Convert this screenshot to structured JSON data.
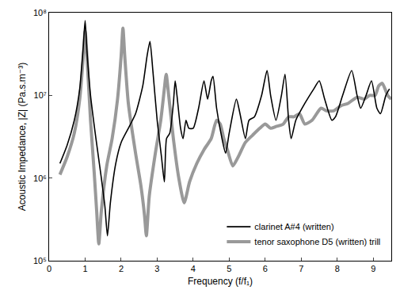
{
  "chart_data": {
    "type": "line",
    "x_label": "Frequency (f/f₁)",
    "y_label": "Acoustic Impedance, |Z| (Pa.s.m⁻³)",
    "log": "y",
    "grid": false,
    "legend": "lower right",
    "xlim": [
      0,
      9.5
    ],
    "xticks": [
      0,
      1,
      2,
      3,
      4,
      5,
      6,
      7,
      8,
      9
    ],
    "ylim": [
      100000,
      100000000
    ],
    "yticks": [
      {
        "value": 100000,
        "label": "10⁵"
      },
      {
        "value": 1000000,
        "label": "10⁶"
      },
      {
        "value": 10000000,
        "label": "10⁷"
      },
      {
        "value": 100000000,
        "label": "10⁸"
      }
    ],
    "series": [
      {
        "name": "clarinet A#4 (written)",
        "color": "#000000",
        "line_style": "solid",
        "x": [
          0.3,
          0.5,
          0.7,
          0.85,
          0.95,
          1.0,
          1.05,
          1.15,
          1.3,
          1.45,
          1.55,
          1.62,
          1.7,
          1.85,
          2.0,
          2.2,
          2.4,
          2.6,
          2.72,
          2.8,
          2.88,
          3.0,
          3.12,
          3.2,
          3.26,
          3.35,
          3.45,
          3.5,
          3.55,
          3.65,
          3.72,
          3.8,
          3.88,
          4.0,
          4.15,
          4.3,
          4.4,
          4.5,
          4.55,
          4.65,
          4.8,
          4.9,
          5.0,
          5.2,
          5.3,
          5.45,
          5.55,
          5.7,
          5.9,
          6.05,
          6.15,
          6.3,
          6.45,
          6.55,
          6.65,
          6.72,
          6.85,
          7.1,
          7.35,
          7.5,
          7.65,
          7.85,
          7.95,
          8.15,
          8.4,
          8.55,
          8.65,
          8.8,
          8.95,
          9.1,
          9.2,
          9.35,
          9.45
        ],
        "values": [
          1500000,
          2500000,
          5000000,
          12000000,
          40000000,
          80000000,
          35000000,
          10000000,
          3000000,
          1000000,
          450000,
          200000,
          500000,
          1500000,
          2700000,
          4000000,
          6000000,
          13000000,
          30000000,
          45000000,
          20000000,
          5000000,
          1800000,
          900000,
          3000000,
          3500000,
          8000000,
          15000000,
          10000000,
          4000000,
          3000000,
          5000000,
          4000000,
          4000000,
          7000000,
          15000000,
          9000000,
          15000000,
          17000000,
          7000000,
          3000000,
          2000000,
          3500000,
          9000000,
          6000000,
          3000000,
          5000000,
          5500000,
          10000000,
          20000000,
          10000000,
          5000000,
          10000000,
          18000000,
          5000000,
          3000000,
          5000000,
          8000000,
          12000000,
          15000000,
          9000000,
          5000000,
          5500000,
          10000000,
          20000000,
          10000000,
          7000000,
          10000000,
          15000000,
          7000000,
          6000000,
          10000000,
          12000000
        ]
      },
      {
        "name": "tenor saxophone D5 (written) trill",
        "color": "#999999",
        "line_style": "solid",
        "x": [
          0.3,
          0.5,
          0.7,
          0.85,
          0.95,
          1.0,
          1.05,
          1.15,
          1.25,
          1.32,
          1.38,
          1.45,
          1.6,
          1.75,
          1.9,
          2.0,
          2.05,
          2.1,
          2.2,
          2.4,
          2.55,
          2.65,
          2.7,
          2.78,
          2.95,
          3.1,
          3.2,
          3.25,
          3.32,
          3.45,
          3.6,
          3.75,
          3.9,
          4.1,
          4.3,
          4.5,
          4.65,
          4.75,
          4.85,
          4.95,
          5.1,
          5.25,
          5.45,
          5.65,
          5.85,
          6.0,
          6.15,
          6.3,
          6.5,
          6.65,
          6.8,
          6.95,
          7.1,
          7.3,
          7.55,
          7.7,
          7.9,
          8.1,
          8.3,
          8.55,
          8.75,
          8.9,
          9.05,
          9.15,
          9.25,
          9.4,
          9.5
        ],
        "values": [
          1100000,
          1800000,
          3500000,
          9000000,
          30000000,
          60000000,
          30000000,
          5000000,
          1200000,
          400000,
          160000,
          400000,
          1400000,
          3000000,
          9000000,
          30000000,
          65000000,
          30000000,
          8000000,
          2000000,
          800000,
          350000,
          200000,
          600000,
          2000000,
          5000000,
          12000000,
          18000000,
          10000000,
          3000000,
          1000000,
          500000,
          900000,
          1500000,
          2200000,
          3000000,
          5000000,
          4500000,
          3000000,
          2200000,
          1400000,
          1800000,
          2700000,
          3300000,
          4000000,
          4500000,
          4000000,
          4200000,
          4500000,
          5500000,
          5500000,
          6000000,
          4500000,
          5000000,
          7000000,
          6500000,
          6500000,
          7500000,
          8000000,
          9500000,
          9000000,
          10000000,
          10000000,
          13000000,
          14000000,
          10000000,
          9000000
        ]
      }
    ]
  }
}
